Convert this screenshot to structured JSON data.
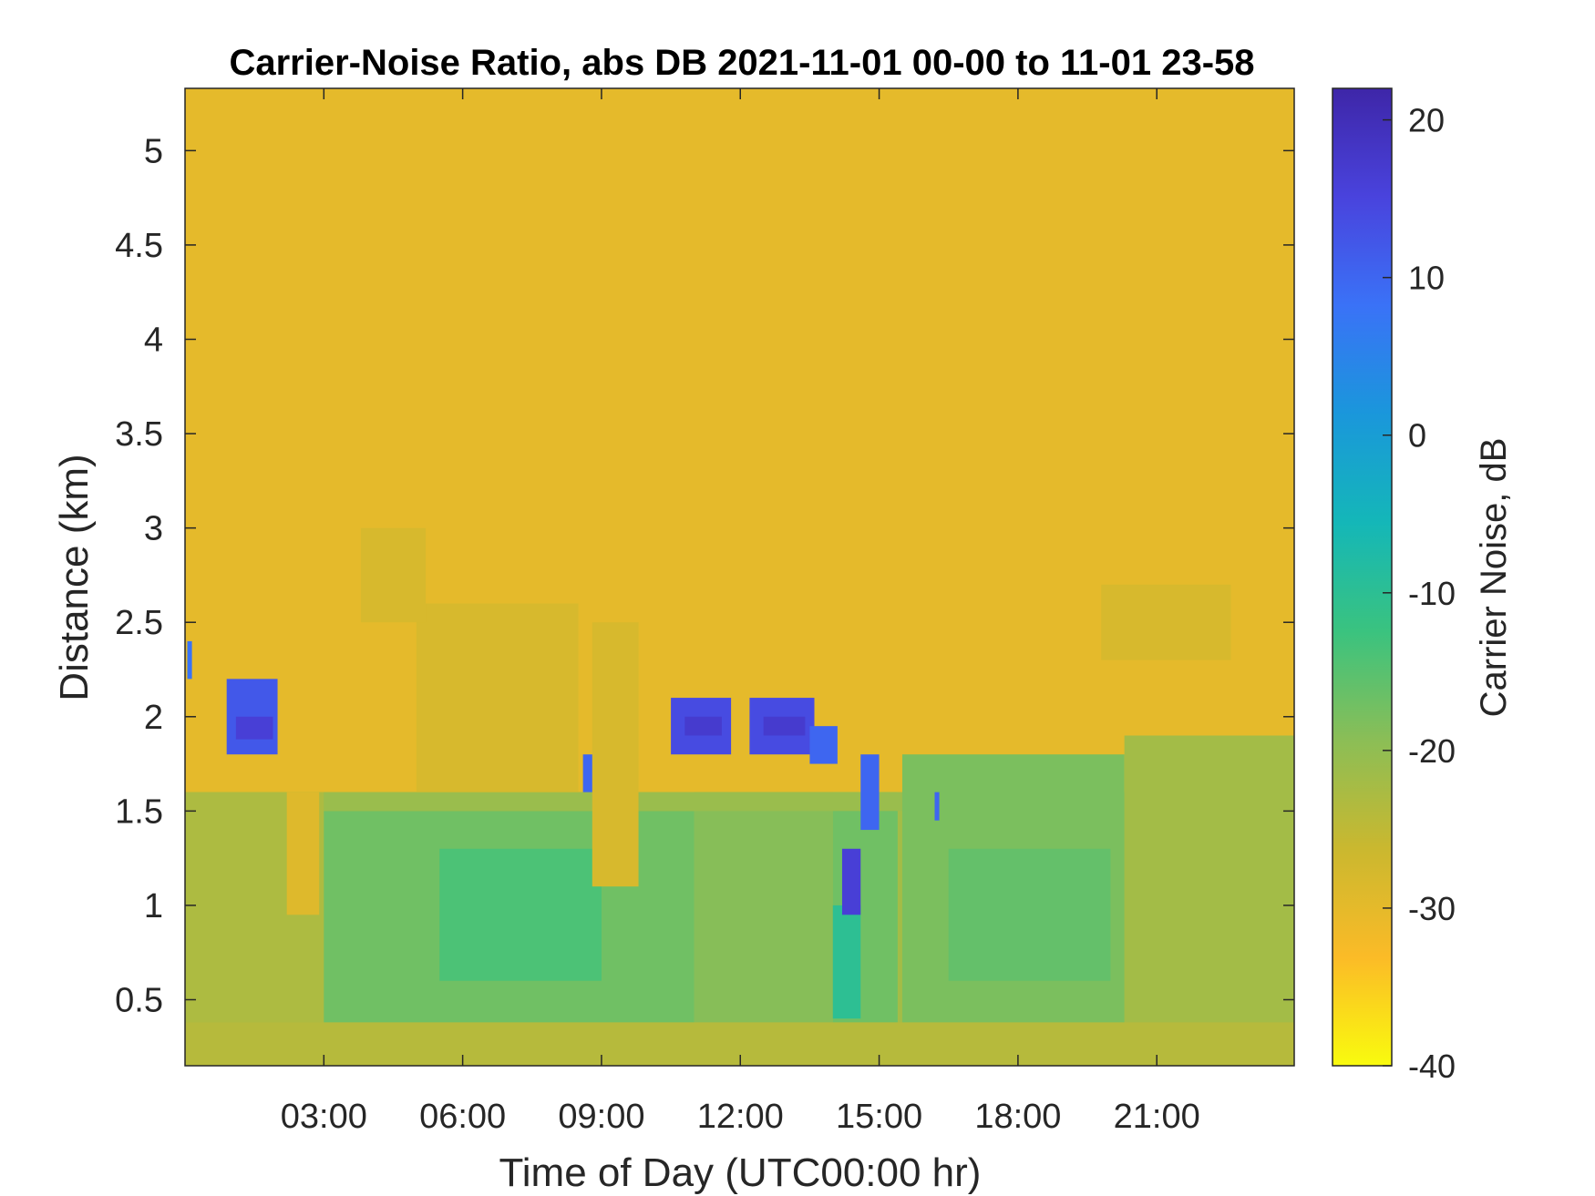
{
  "chart_data": {
    "type": "heatmap",
    "title": "Carrier-Noise Ratio, abs DB 2021-11-01 00-00 to 11-01 23-58",
    "xlabel": "Time of Day (UTC00:00 hr)",
    "ylabel": "Distance (km)",
    "colorbar_label": "Carrier Noise, dB",
    "xlim": [
      0,
      23.97
    ],
    "ylim": [
      0.15,
      5.33
    ],
    "clim": [
      -40,
      22
    ],
    "x_ticks": [
      {
        "value": 3,
        "label": "03:00"
      },
      {
        "value": 6,
        "label": "06:00"
      },
      {
        "value": 9,
        "label": "09:00"
      },
      {
        "value": 12,
        "label": "12:00"
      },
      {
        "value": 15,
        "label": "15:00"
      },
      {
        "value": 18,
        "label": "18:00"
      },
      {
        "value": 21,
        "label": "21:00"
      }
    ],
    "y_ticks": [
      {
        "value": 0.5,
        "label": "0.5"
      },
      {
        "value": 1,
        "label": "1"
      },
      {
        "value": 1.5,
        "label": "1.5"
      },
      {
        "value": 2,
        "label": "2"
      },
      {
        "value": 2.5,
        "label": "2.5"
      },
      {
        "value": 3,
        "label": "3"
      },
      {
        "value": 3.5,
        "label": "3.5"
      },
      {
        "value": 4,
        "label": "4"
      },
      {
        "value": 4.5,
        "label": "4.5"
      },
      {
        "value": 5,
        "label": "5"
      }
    ],
    "colorbar_ticks": [
      {
        "value": 20,
        "label": "20"
      },
      {
        "value": 10,
        "label": "10"
      },
      {
        "value": 0,
        "label": "0"
      },
      {
        "value": -10,
        "label": "-10"
      },
      {
        "value": -20,
        "label": "-20"
      },
      {
        "value": -30,
        "label": "-30"
      },
      {
        "value": -40,
        "label": "-40"
      }
    ],
    "colormap": "parula (reversed)",
    "colormap_stops": [
      "#f9fb0e",
      "#fbbb27",
      "#cab82f",
      "#8bbe56",
      "#3ac37f",
      "#14b7b8",
      "#1a97db",
      "#3a72f7",
      "#4943dd",
      "#3e26a8"
    ],
    "background_value": -30,
    "regions": [
      {
        "t": [
          0,
          24
        ],
        "d": [
          0.15,
          1.6
        ],
        "value": -22
      },
      {
        "t": [
          0,
          3.0
        ],
        "d": [
          0.15,
          1.6
        ],
        "value": -23
      },
      {
        "t": [
          3.0,
          11.0
        ],
        "d": [
          0.2,
          1.5
        ],
        "value": -17
      },
      {
        "t": [
          5.5,
          9.0
        ],
        "d": [
          0.6,
          1.3
        ],
        "value": -14
      },
      {
        "t": [
          11.0,
          14.0
        ],
        "d": [
          0.15,
          1.6
        ],
        "value": -19
      },
      {
        "t": [
          14.0,
          15.4
        ],
        "d": [
          0.2,
          1.6
        ],
        "value": -17
      },
      {
        "t": [
          14.0,
          14.6
        ],
        "d": [
          0.4,
          1.0
        ],
        "value": -10
      },
      {
        "t": [
          15.5,
          20.3
        ],
        "d": [
          0.3,
          1.8
        ],
        "value": -18
      },
      {
        "t": [
          16.5,
          20.0
        ],
        "d": [
          0.6,
          1.3
        ],
        "value": -16
      },
      {
        "t": [
          20.3,
          24
        ],
        "d": [
          0.15,
          1.9
        ],
        "value": -22
      },
      {
        "t": [
          0,
          24
        ],
        "d": [
          0.15,
          0.38
        ],
        "value": -24
      },
      {
        "t": [
          3.0,
          15.5
        ],
        "d": [
          1.5,
          1.6
        ],
        "value": -21
      },
      {
        "t": [
          2.2,
          2.9
        ],
        "d": [
          0.95,
          1.6
        ],
        "value": -29
      },
      {
        "t": [
          8.8,
          9.8
        ],
        "d": [
          1.1,
          2.5
        ],
        "value": -28
      },
      {
        "t": [
          5.0,
          8.5
        ],
        "d": [
          1.6,
          2.6
        ],
        "value": -28
      },
      {
        "t": [
          3.8,
          5.2
        ],
        "d": [
          2.5,
          3.0
        ],
        "value": -28
      },
      {
        "t": [
          19.8,
          22.6
        ],
        "d": [
          2.3,
          2.7
        ],
        "value": -28
      },
      {
        "t": [
          0.9,
          2.0
        ],
        "d": [
          1.8,
          2.2
        ],
        "value": 12
      },
      {
        "t": [
          1.1,
          1.9
        ],
        "d": [
          1.88,
          2.0
        ],
        "value": 16
      },
      {
        "t": [
          10.5,
          11.8
        ],
        "d": [
          1.8,
          2.1
        ],
        "value": 14
      },
      {
        "t": [
          10.8,
          11.6
        ],
        "d": [
          1.9,
          2.0
        ],
        "value": 17
      },
      {
        "t": [
          12.2,
          13.6
        ],
        "d": [
          1.8,
          2.1
        ],
        "value": 14
      },
      {
        "t": [
          12.5,
          13.4
        ],
        "d": [
          1.9,
          2.0
        ],
        "value": 17
      },
      {
        "t": [
          13.5,
          14.1
        ],
        "d": [
          1.75,
          1.95
        ],
        "value": 10
      },
      {
        "t": [
          8.6,
          8.8
        ],
        "d": [
          1.6,
          1.8
        ],
        "value": 10
      },
      {
        "t": [
          0.05,
          0.15
        ],
        "d": [
          2.2,
          2.4
        ],
        "value": 8
      },
      {
        "t": [
          14.2,
          14.6
        ],
        "d": [
          0.95,
          1.3
        ],
        "value": 16
      },
      {
        "t": [
          14.6,
          15.0
        ],
        "d": [
          1.4,
          1.8
        ],
        "value": 10
      },
      {
        "t": [
          16.2,
          16.3
        ],
        "d": [
          1.45,
          1.6
        ],
        "value": 10
      }
    ]
  }
}
